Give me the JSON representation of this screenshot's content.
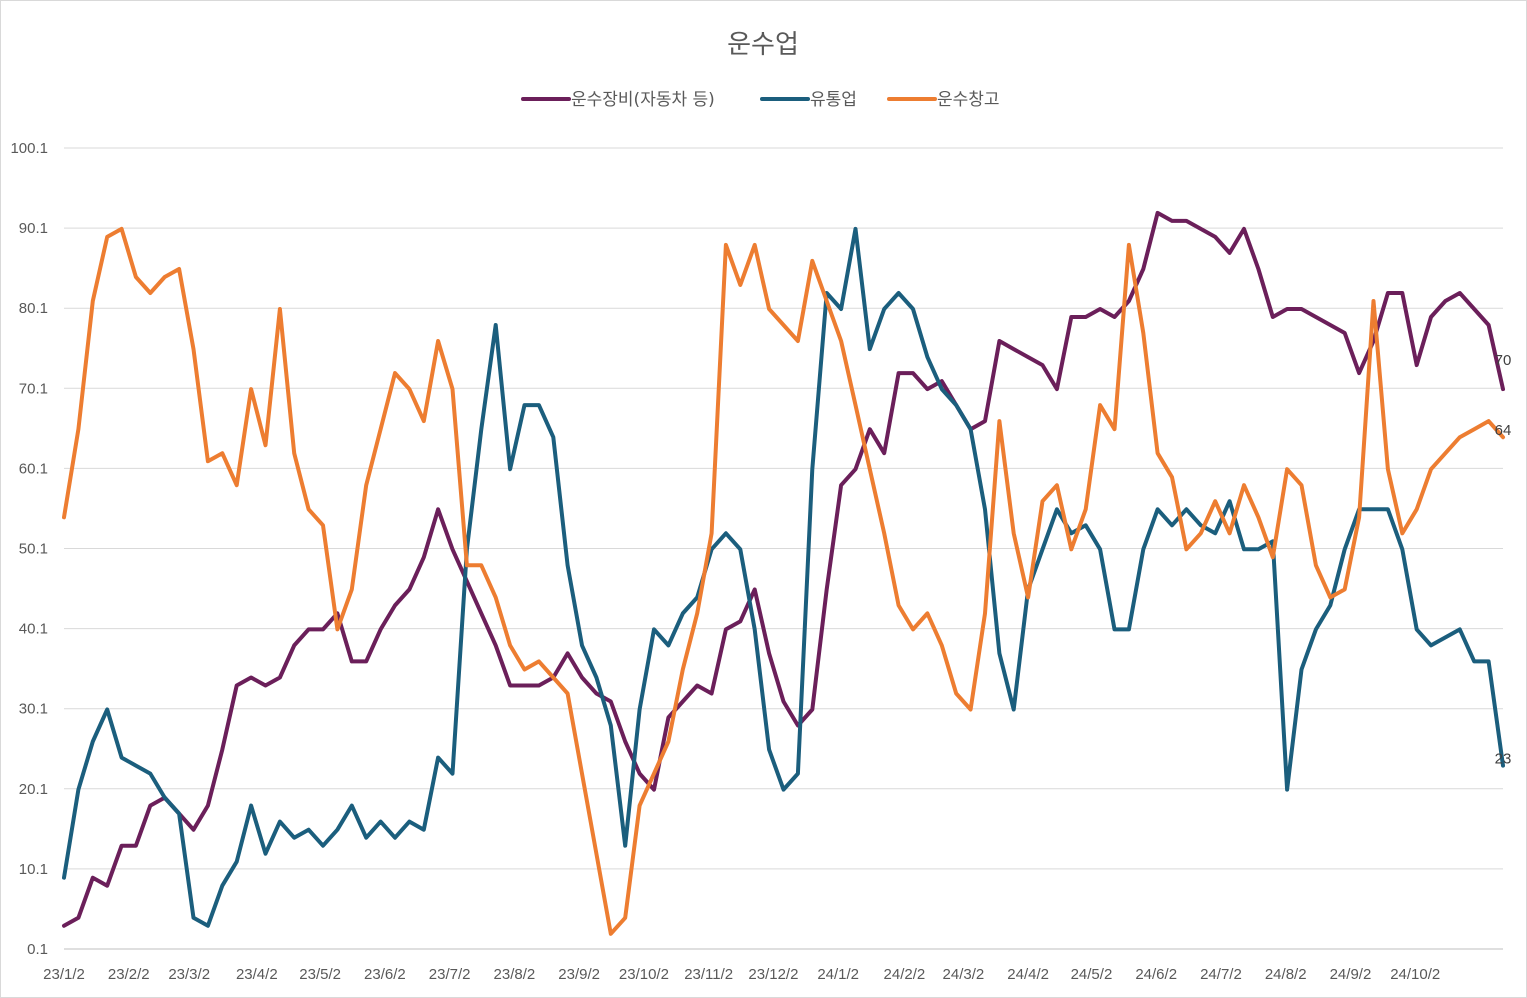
{
  "chart_data": {
    "type": "line",
    "title": "운수업",
    "xlabel": "",
    "ylabel": "",
    "ylim": [
      0.1,
      100.1
    ],
    "yticks": [
      0.1,
      10.1,
      20.1,
      30.1,
      40.1,
      50.1,
      60.1,
      70.1,
      80.1,
      90.1,
      100.1
    ],
    "ytick_labels": [
      "0.1",
      "10.1",
      "20.1",
      "30.1",
      "40.1",
      "50.1",
      "60.1",
      "70.1",
      "80.1",
      "90.1",
      "100.1"
    ],
    "x_range": [
      0,
      100
    ],
    "categories": [
      "23/1/2",
      "23/2/2",
      "23/3/2",
      "23/4/2",
      "23/5/2",
      "23/6/2",
      "23/7/2",
      "23/8/2",
      "23/9/2",
      "23/10/2",
      "23/11/2",
      "23/12/2",
      "24/1/2",
      "24/2/2",
      "24/3/2",
      "24/4/2",
      "24/5/2",
      "24/6/2",
      "24/7/2",
      "24/8/2",
      "24/9/2",
      "24/10/2"
    ],
    "category_positions": [
      0,
      4.5,
      8.7,
      13.4,
      17.8,
      22.3,
      26.8,
      31.3,
      35.8,
      40.3,
      44.8,
      49.3,
      53.8,
      58.4,
      62.5,
      67.0,
      71.4,
      75.9,
      80.4,
      84.9,
      89.4,
      93.9
    ],
    "grid": true,
    "legend_position": "top-center",
    "series": [
      {
        "name": "운수장비(자동차 등)",
        "color": "#6b1f5a",
        "end_label": "70",
        "x": [
          0,
          1,
          2,
          3,
          4,
          5,
          6,
          7,
          8,
          9,
          10,
          11,
          12,
          13,
          14,
          15,
          16,
          17,
          18,
          19,
          20,
          21,
          22,
          23,
          24,
          25,
          26,
          27,
          28,
          29,
          30,
          31,
          32,
          33,
          34,
          35,
          36,
          37,
          38,
          39,
          40,
          41,
          42,
          43,
          44,
          45,
          46,
          47,
          48,
          49,
          50,
          51,
          52,
          53,
          54,
          55,
          56,
          57,
          58,
          59,
          60,
          61,
          62,
          63,
          64,
          65,
          66,
          67,
          68,
          69,
          70,
          71,
          72,
          73,
          74,
          75,
          76,
          77,
          78,
          79,
          80,
          81,
          82,
          83,
          84,
          85,
          86,
          87,
          88,
          89,
          90,
          91,
          92,
          93,
          94,
          95,
          96,
          97,
          98,
          99,
          100
        ],
        "values": [
          3,
          4,
          9,
          8,
          13,
          13,
          18,
          19,
          17,
          15,
          18,
          25,
          33,
          34,
          33,
          34,
          38,
          40,
          40,
          42,
          36,
          36,
          40,
          43,
          45,
          49,
          55,
          50,
          46,
          42,
          38,
          33,
          33,
          33,
          34,
          37,
          34,
          32,
          31,
          26,
          22,
          20,
          29,
          31,
          33,
          32,
          40,
          41,
          45,
          37,
          31,
          28,
          30,
          45,
          58,
          60,
          65,
          62,
          72,
          72,
          70,
          71,
          68,
          65,
          66,
          76,
          75,
          74,
          73,
          70,
          79,
          79,
          80,
          79,
          81,
          85,
          92,
          91,
          91,
          90,
          89,
          87,
          90,
          85,
          79,
          80,
          80,
          79,
          78,
          77,
          72,
          76,
          82,
          82,
          73,
          79,
          81,
          82,
          80,
          78,
          70
        ]
      },
      {
        "name": "유통업",
        "color": "#1b5e7d",
        "end_label": "23",
        "x": [
          0,
          1,
          2,
          3,
          4,
          5,
          6,
          7,
          8,
          9,
          10,
          11,
          12,
          13,
          14,
          15,
          16,
          17,
          18,
          19,
          20,
          21,
          22,
          23,
          24,
          25,
          26,
          27,
          28,
          29,
          30,
          31,
          32,
          33,
          34,
          35,
          36,
          37,
          38,
          39,
          40,
          41,
          42,
          43,
          44,
          45,
          46,
          47,
          48,
          49,
          50,
          51,
          52,
          53,
          54,
          55,
          56,
          57,
          58,
          59,
          60,
          61,
          62,
          63,
          64,
          65,
          66,
          67,
          68,
          69,
          70,
          71,
          72,
          73,
          74,
          75,
          76,
          77,
          78,
          79,
          80,
          81,
          82,
          83,
          84,
          85,
          86,
          87,
          88,
          89,
          90,
          91,
          92,
          93,
          94,
          95,
          96,
          97,
          98,
          99,
          100
        ],
        "values": [
          9,
          20,
          26,
          30,
          24,
          23,
          22,
          19,
          17,
          4,
          3,
          8,
          11,
          18,
          12,
          16,
          14,
          15,
          13,
          15,
          18,
          14,
          16,
          14,
          16,
          15,
          24,
          22,
          50,
          65,
          78,
          60,
          68,
          68,
          64,
          48,
          38,
          34,
          28,
          13,
          30,
          40,
          38,
          42,
          44,
          50,
          52,
          50,
          40,
          25,
          20,
          22,
          60,
          82,
          80,
          90,
          75,
          80,
          82,
          80,
          74,
          70,
          68,
          65,
          55,
          37,
          30,
          45,
          50,
          55,
          52,
          53,
          50,
          40,
          40,
          50,
          55,
          53,
          55,
          53,
          52,
          56,
          50,
          50,
          51,
          20,
          35,
          40,
          43,
          50,
          55,
          55,
          55,
          50,
          40,
          38,
          39,
          40,
          36,
          36,
          23
        ]
      },
      {
        "name": "운수창고",
        "color": "#ed7d31",
        "end_label": "64",
        "x": [
          0,
          1,
          2,
          3,
          4,
          5,
          6,
          7,
          8,
          9,
          10,
          11,
          12,
          13,
          14,
          15,
          16,
          17,
          18,
          19,
          20,
          21,
          22,
          23,
          24,
          25,
          26,
          27,
          28,
          29,
          30,
          31,
          32,
          33,
          34,
          35,
          36,
          37,
          38,
          39,
          40,
          41,
          42,
          43,
          44,
          45,
          46,
          47,
          48,
          49,
          50,
          51,
          52,
          53,
          54,
          55,
          56,
          57,
          58,
          59,
          60,
          61,
          62,
          63,
          64,
          65,
          66,
          67,
          68,
          69,
          70,
          71,
          72,
          73,
          74,
          75,
          76,
          77,
          78,
          79,
          80,
          81,
          82,
          83,
          84,
          85,
          86,
          87,
          88,
          89,
          90,
          91,
          92,
          93,
          94,
          95,
          96,
          97,
          98,
          99,
          100
        ],
        "values": [
          54,
          65,
          81,
          89,
          90,
          84,
          82,
          84,
          85,
          75,
          61,
          62,
          58,
          70,
          63,
          80,
          62,
          55,
          53,
          40,
          45,
          58,
          65,
          72,
          70,
          66,
          76,
          70,
          48,
          48,
          44,
          38,
          35,
          36,
          34,
          32,
          22,
          12,
          2,
          4,
          18,
          22,
          26,
          35,
          42,
          52,
          88,
          83,
          88,
          80,
          78,
          76,
          86,
          81,
          76,
          68,
          60,
          52,
          43,
          40,
          42,
          38,
          32,
          30,
          42,
          66,
          52,
          44,
          56,
          58,
          50,
          55,
          68,
          65,
          88,
          77,
          62,
          59,
          50,
          52,
          56,
          52,
          58,
          54,
          49,
          60,
          58,
          48,
          44,
          45,
          54,
          81,
          60,
          52,
          55,
          60,
          62,
          64,
          65,
          66,
          64
        ]
      }
    ]
  }
}
